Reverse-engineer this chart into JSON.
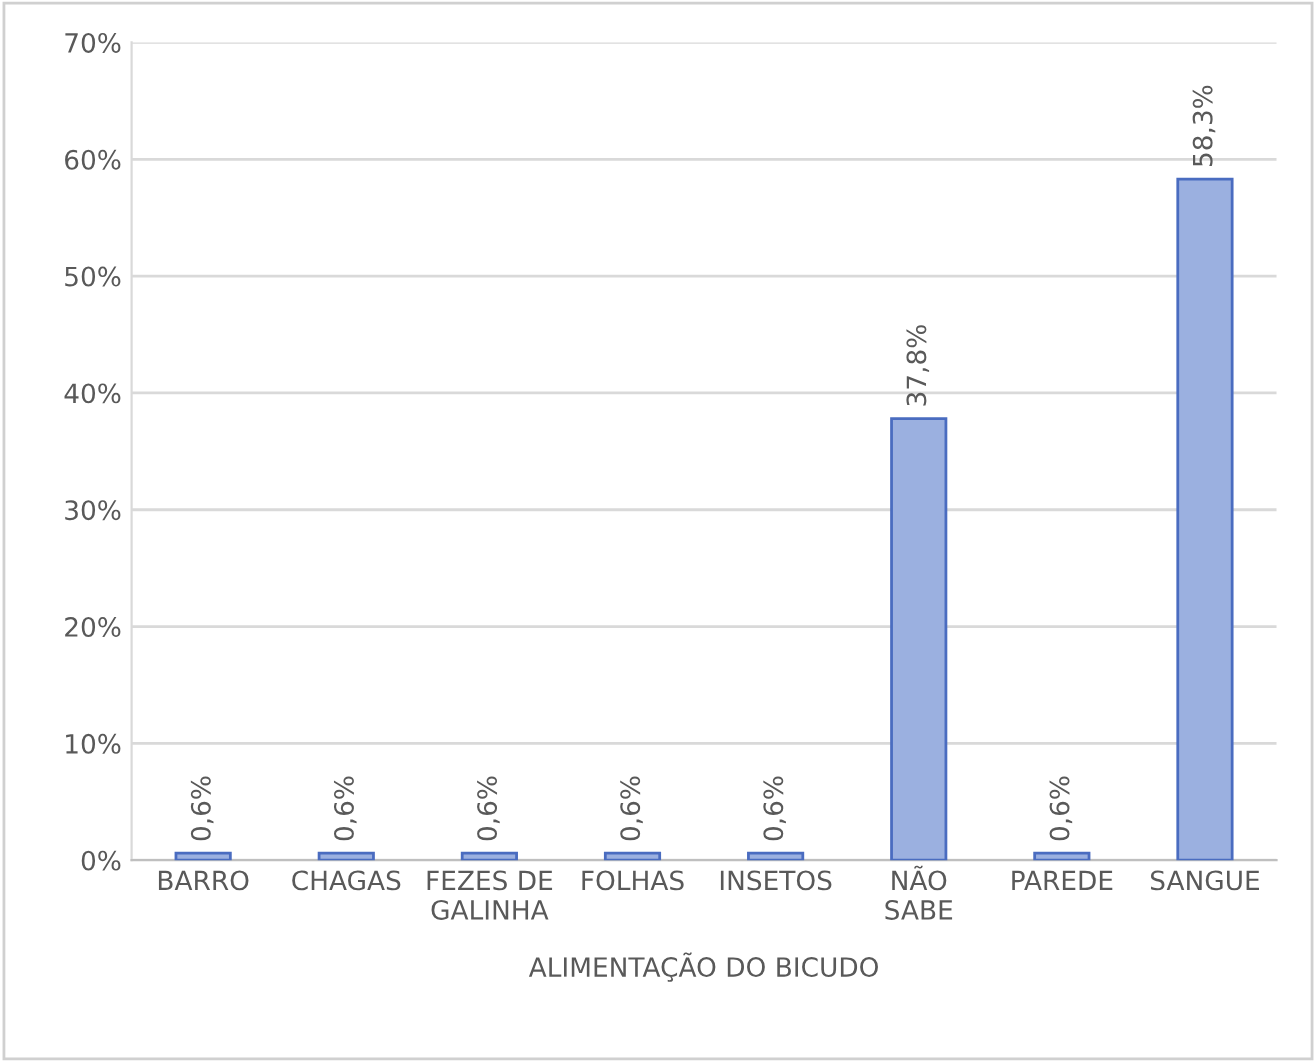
{
  "chart_data": {
    "type": "bar",
    "xlabel": "ALIMENTAÇÃO DO BICUDO",
    "categories": [
      "BARRO",
      "CHAGAS",
      "FEZES DE\nGALINHA",
      "FOLHAS",
      "INSETOS",
      "NÃO\nSABE",
      "PAREDE",
      "SANGUE"
    ],
    "values": [
      0.6,
      0.6,
      0.6,
      0.6,
      0.6,
      37.8,
      0.6,
      58.3
    ],
    "value_labels": [
      "0,6%",
      "0,6%",
      "0,6%",
      "0,6%",
      "0,6%",
      "37,8%",
      "0,6%",
      "58,3%"
    ],
    "color": "#9bb0e0",
    "ylim": [
      0,
      70
    ],
    "yticks": [
      {
        "value": 0,
        "label": "0%"
      },
      {
        "value": 10,
        "label": "10%"
      },
      {
        "value": 20,
        "label": "20%"
      },
      {
        "value": 30,
        "label": "30%"
      },
      {
        "value": 40,
        "label": "40%"
      },
      {
        "value": 50,
        "label": "50%"
      },
      {
        "value": 60,
        "label": "60%"
      },
      {
        "value": 70,
        "label": "70%"
      }
    ],
    "grid": "y",
    "legend": false
  }
}
